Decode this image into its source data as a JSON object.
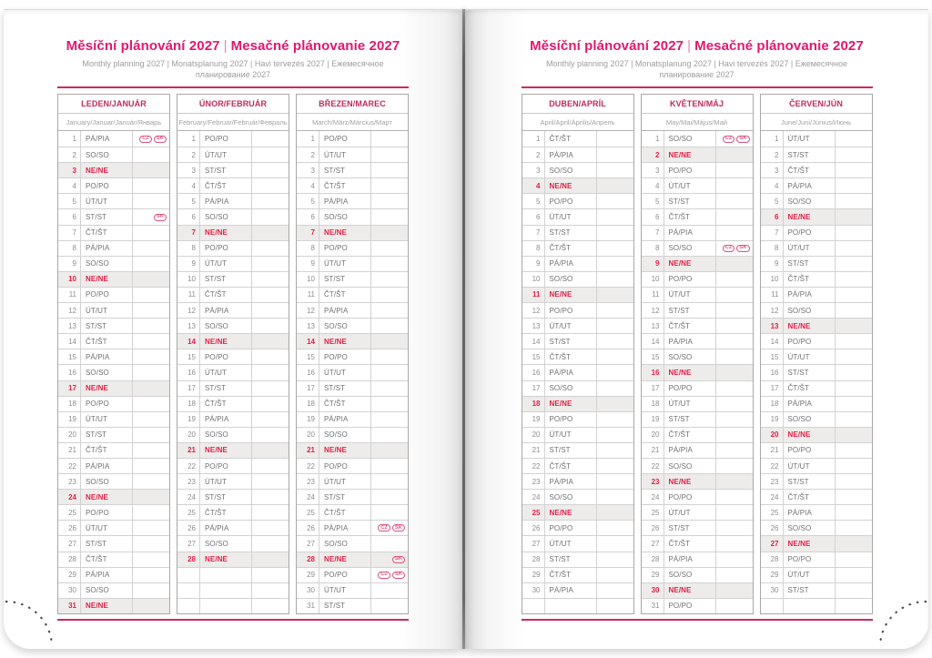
{
  "header": {
    "title_cs": "Měsíční plánování 2027",
    "title_sk": "Mesačné plánovanie 2027",
    "separator": "|",
    "subtitle": "Monthly planning 2027 | Monatsplanung 2027 | Havi tervezés 2027 | Ежемесячное планирование 2027"
  },
  "sunday_label": "NE/NE",
  "badge_labels": {
    "cz": "CZ",
    "sk": "SK"
  },
  "colors": {
    "accent_pink": "#e3176f",
    "month_header": "#c02a5e",
    "sunday_red": "#e12147",
    "badge_pink": "#dd537f",
    "rule_pink": "#d0275f",
    "row_shade": "#edecea",
    "text_gray": "#717174",
    "muted_gray": "#9d9d9d"
  },
  "pages": [
    {
      "months": [
        {
          "name": "LEDEN/JANUÁR",
          "subtitle": "January/Januar/Január/Январь",
          "days": [
            [
              1,
              "PÁ/PIA",
              [
                "CZ",
                "SK"
              ]
            ],
            [
              2,
              "SO/SO"
            ],
            [
              3,
              "NE/NE"
            ],
            [
              4,
              "PO/PO"
            ],
            [
              5,
              "ÚT/UT"
            ],
            [
              6,
              "ST/ST",
              [
                "SK"
              ]
            ],
            [
              7,
              "ČT/ŠT"
            ],
            [
              8,
              "PÁ/PIA"
            ],
            [
              9,
              "SO/SO"
            ],
            [
              10,
              "NE/NE"
            ],
            [
              11,
              "PO/PO"
            ],
            [
              12,
              "ÚT/UT"
            ],
            [
              13,
              "ST/ST"
            ],
            [
              14,
              "ČT/ŠT"
            ],
            [
              15,
              "PÁ/PIA"
            ],
            [
              16,
              "SO/SO"
            ],
            [
              17,
              "NE/NE"
            ],
            [
              18,
              "PO/PO"
            ],
            [
              19,
              "ÚT/UT"
            ],
            [
              20,
              "ST/ST"
            ],
            [
              21,
              "ČT/ŠT"
            ],
            [
              22,
              "PÁ/PIA"
            ],
            [
              23,
              "SO/SO"
            ],
            [
              24,
              "NE/NE"
            ],
            [
              25,
              "PO/PO"
            ],
            [
              26,
              "ÚT/UT"
            ],
            [
              27,
              "ST/ST"
            ],
            [
              28,
              "ČT/ŠT"
            ],
            [
              29,
              "PÁ/PIA"
            ],
            [
              30,
              "SO/SO"
            ],
            [
              31,
              "NE/NE"
            ]
          ]
        },
        {
          "name": "ÚNOR/FEBRUÁR",
          "subtitle": "February/Februar/Február/Февраль",
          "days": [
            [
              1,
              "PO/PO"
            ],
            [
              2,
              "ÚT/UT"
            ],
            [
              3,
              "ST/ST"
            ],
            [
              4,
              "ČT/ŠT"
            ],
            [
              5,
              "PÁ/PIA"
            ],
            [
              6,
              "SO/SO"
            ],
            [
              7,
              "NE/NE"
            ],
            [
              8,
              "PO/PO"
            ],
            [
              9,
              "ÚT/UT"
            ],
            [
              10,
              "ST/ST"
            ],
            [
              11,
              "ČT/ŠT"
            ],
            [
              12,
              "PÁ/PIA"
            ],
            [
              13,
              "SO/SO"
            ],
            [
              14,
              "NE/NE"
            ],
            [
              15,
              "PO/PO"
            ],
            [
              16,
              "ÚT/UT"
            ],
            [
              17,
              "ST/ST"
            ],
            [
              18,
              "ČT/ŠT"
            ],
            [
              19,
              "PÁ/PIA"
            ],
            [
              20,
              "SO/SO"
            ],
            [
              21,
              "NE/NE"
            ],
            [
              22,
              "PO/PO"
            ],
            [
              23,
              "ÚT/UT"
            ],
            [
              24,
              "ST/ST"
            ],
            [
              25,
              "ČT/ŠT"
            ],
            [
              26,
              "PÁ/PIA"
            ],
            [
              27,
              "SO/SO"
            ],
            [
              28,
              "NE/NE"
            ],
            [
              null,
              ""
            ],
            [
              null,
              ""
            ],
            [
              null,
              ""
            ]
          ]
        },
        {
          "name": "BŘEZEN/MAREC",
          "subtitle": "March/März/Március/Март",
          "days": [
            [
              1,
              "PO/PO"
            ],
            [
              2,
              "ÚT/UT"
            ],
            [
              3,
              "ST/ST"
            ],
            [
              4,
              "ČT/ŠT"
            ],
            [
              5,
              "PÁ/PIA"
            ],
            [
              6,
              "SO/SO"
            ],
            [
              7,
              "NE/NE"
            ],
            [
              8,
              "PO/PO"
            ],
            [
              9,
              "ÚT/UT"
            ],
            [
              10,
              "ST/ST"
            ],
            [
              11,
              "ČT/ŠT"
            ],
            [
              12,
              "PÁ/PIA"
            ],
            [
              13,
              "SO/SO"
            ],
            [
              14,
              "NE/NE"
            ],
            [
              15,
              "PO/PO"
            ],
            [
              16,
              "ÚT/UT"
            ],
            [
              17,
              "ST/ST"
            ],
            [
              18,
              "ČT/ŠT"
            ],
            [
              19,
              "PÁ/PIA"
            ],
            [
              20,
              "SO/SO"
            ],
            [
              21,
              "NE/NE"
            ],
            [
              22,
              "PO/PO"
            ],
            [
              23,
              "ÚT/UT"
            ],
            [
              24,
              "ST/ST"
            ],
            [
              25,
              "ČT/ŠT"
            ],
            [
              26,
              "PÁ/PIA",
              [
                "CZ",
                "SK"
              ]
            ],
            [
              27,
              "SO/SO"
            ],
            [
              28,
              "NE/NE",
              [
                "SK"
              ]
            ],
            [
              29,
              "PO/PO",
              [
                "CZ",
                "SK"
              ]
            ],
            [
              30,
              "ÚT/UT"
            ],
            [
              31,
              "ST/ST"
            ]
          ]
        }
      ]
    },
    {
      "months": [
        {
          "name": "DUBEN/APRÍL",
          "subtitle": "April/April/Április/Апрель",
          "days": [
            [
              1,
              "ČT/ŠT"
            ],
            [
              2,
              "PÁ/PIA"
            ],
            [
              3,
              "SO/SO"
            ],
            [
              4,
              "NE/NE"
            ],
            [
              5,
              "PO/PO"
            ],
            [
              6,
              "ÚT/UT"
            ],
            [
              7,
              "ST/ST"
            ],
            [
              8,
              "ČT/ŠT"
            ],
            [
              9,
              "PÁ/PIA"
            ],
            [
              10,
              "SO/SO"
            ],
            [
              11,
              "NE/NE"
            ],
            [
              12,
              "PO/PO"
            ],
            [
              13,
              "ÚT/UT"
            ],
            [
              14,
              "ST/ST"
            ],
            [
              15,
              "ČT/ŠT"
            ],
            [
              16,
              "PÁ/PIA"
            ],
            [
              17,
              "SO/SO"
            ],
            [
              18,
              "NE/NE"
            ],
            [
              19,
              "PO/PO"
            ],
            [
              20,
              "ÚT/UT"
            ],
            [
              21,
              "ST/ST"
            ],
            [
              22,
              "ČT/ŠT"
            ],
            [
              23,
              "PÁ/PIA"
            ],
            [
              24,
              "SO/SO"
            ],
            [
              25,
              "NE/NE"
            ],
            [
              26,
              "PO/PO"
            ],
            [
              27,
              "ÚT/UT"
            ],
            [
              28,
              "ST/ST"
            ],
            [
              29,
              "ČT/ŠT"
            ],
            [
              30,
              "PÁ/PIA"
            ],
            [
              null,
              ""
            ]
          ]
        },
        {
          "name": "KVĚTEN/MÁJ",
          "subtitle": "May/Mai/Május/Май",
          "days": [
            [
              1,
              "SO/SO",
              [
                "CZ",
                "SK"
              ]
            ],
            [
              2,
              "NE/NE"
            ],
            [
              3,
              "PO/PO"
            ],
            [
              4,
              "ÚT/UT"
            ],
            [
              5,
              "ST/ST"
            ],
            [
              6,
              "ČT/ŠT"
            ],
            [
              7,
              "PÁ/PIA"
            ],
            [
              8,
              "SO/SO",
              [
                "CZ",
                "SK"
              ]
            ],
            [
              9,
              "NE/NE"
            ],
            [
              10,
              "PO/PO"
            ],
            [
              11,
              "ÚT/UT"
            ],
            [
              12,
              "ST/ST"
            ],
            [
              13,
              "ČT/ŠT"
            ],
            [
              14,
              "PÁ/PIA"
            ],
            [
              15,
              "SO/SO"
            ],
            [
              16,
              "NE/NE"
            ],
            [
              17,
              "PO/PO"
            ],
            [
              18,
              "ÚT/UT"
            ],
            [
              19,
              "ST/ST"
            ],
            [
              20,
              "ČT/ŠT"
            ],
            [
              21,
              "PÁ/PIA"
            ],
            [
              22,
              "SO/SO"
            ],
            [
              23,
              "NE/NE"
            ],
            [
              24,
              "PO/PO"
            ],
            [
              25,
              "ÚT/UT"
            ],
            [
              26,
              "ST/ST"
            ],
            [
              27,
              "ČT/ŠT"
            ],
            [
              28,
              "PÁ/PIA"
            ],
            [
              29,
              "SO/SO"
            ],
            [
              30,
              "NE/NE"
            ],
            [
              31,
              "PO/PO"
            ]
          ]
        },
        {
          "name": "ČERVEN/JÚN",
          "subtitle": "June/Juni/Június/Июнь",
          "days": [
            [
              1,
              "ÚT/UT"
            ],
            [
              2,
              "ST/ST"
            ],
            [
              3,
              "ČT/ŠT"
            ],
            [
              4,
              "PÁ/PIA"
            ],
            [
              5,
              "SO/SO"
            ],
            [
              6,
              "NE/NE"
            ],
            [
              7,
              "PO/PO"
            ],
            [
              8,
              "ÚT/UT"
            ],
            [
              9,
              "ST/ST"
            ],
            [
              10,
              "ČT/ŠT"
            ],
            [
              11,
              "PÁ/PIA"
            ],
            [
              12,
              "SO/SO"
            ],
            [
              13,
              "NE/NE"
            ],
            [
              14,
              "PO/PO"
            ],
            [
              15,
              "ÚT/UT"
            ],
            [
              16,
              "ST/ST"
            ],
            [
              17,
              "ČT/ŠT"
            ],
            [
              18,
              "PÁ/PIA"
            ],
            [
              19,
              "SO/SO"
            ],
            [
              20,
              "NE/NE"
            ],
            [
              21,
              "PO/PO"
            ],
            [
              22,
              "ÚT/UT"
            ],
            [
              23,
              "ST/ST"
            ],
            [
              24,
              "ČT/ŠT"
            ],
            [
              25,
              "PÁ/PIA"
            ],
            [
              26,
              "SO/SO"
            ],
            [
              27,
              "NE/NE"
            ],
            [
              28,
              "PO/PO"
            ],
            [
              29,
              "ÚT/UT"
            ],
            [
              30,
              "ST/ST"
            ],
            [
              null,
              ""
            ]
          ]
        }
      ]
    }
  ]
}
